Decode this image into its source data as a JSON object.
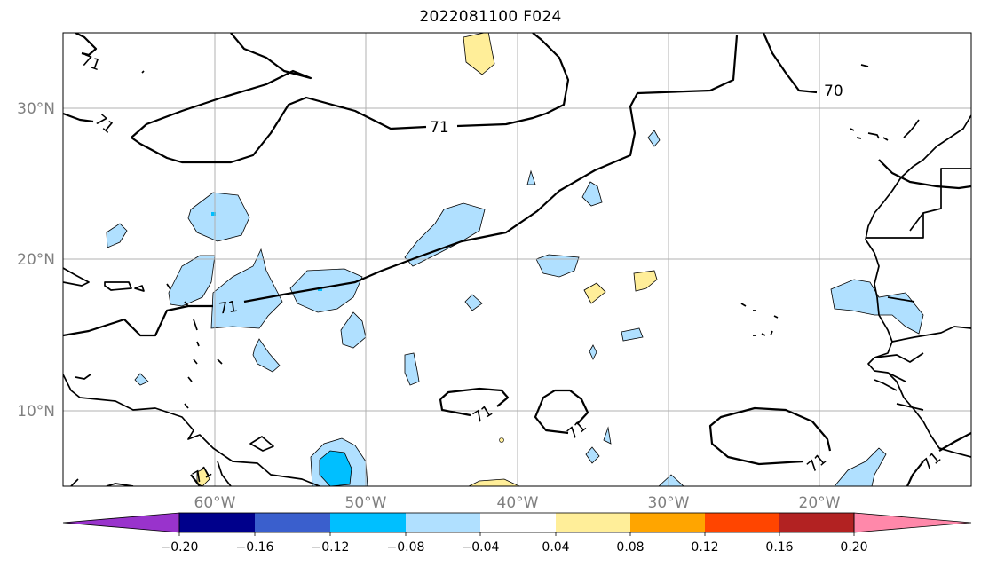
{
  "title": "2022081100 F024",
  "x_ticks": [
    "60°W",
    "50°W",
    "40°W",
    "30°W",
    "20°W"
  ],
  "y_ticks": [
    "30°N",
    "20°N",
    "10°N"
  ],
  "contour_labels": [
    "71",
    "71",
    "71",
    "70",
    "71",
    "71",
    "71",
    "71",
    "71"
  ],
  "colorbar": {
    "ticks": [
      "−0.20",
      "−0.16",
      "−0.12",
      "−0.08",
      "−0.04",
      "0.04",
      "0.08",
      "0.12",
      "0.16",
      "0.20"
    ],
    "colors": [
      "#9933cc",
      "#00008b",
      "#3a5fcd",
      "#00bfff",
      "#b0e0ff",
      "#ffffff",
      "#ffee99",
      "#ffa500",
      "#ff4500",
      "#b22222",
      "#ff88aa"
    ]
  },
  "colors": {
    "light_blue": "#b0e0ff",
    "cyan": "#00bfff",
    "light_yellow": "#ffee99",
    "grid": "#b0b0b0"
  }
}
